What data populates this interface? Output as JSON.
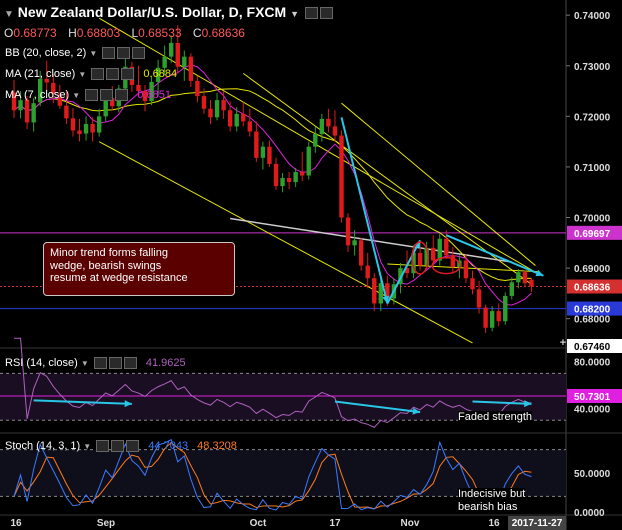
{
  "header": {
    "title": "New Zealand Dollar/U.S. Dollar, D, FXCM",
    "ohlc": [
      {
        "k": "O",
        "v": "0.68773"
      },
      {
        "k": "H",
        "v": "0.68803"
      },
      {
        "k": "L",
        "v": "0.68533"
      },
      {
        "k": "C",
        "v": "0.68636"
      }
    ]
  },
  "indicators": {
    "bb": {
      "label": "BB (20, close, 2)"
    },
    "ma21": {
      "label": "MA (21, close)",
      "value": "0.6884"
    },
    "ma7": {
      "label": "MA (7, close)",
      "value": "0.6851"
    },
    "rsi": {
      "label": "RSI (14, close)",
      "value": "41.9625"
    },
    "stoch": {
      "label": "Stoch (14, 3, 1)",
      "k": "44.7043",
      "d": "48.3208"
    }
  },
  "annotations": {
    "callout": [
      "Minor trend forms falling",
      "wedge, bearish swings",
      "resume at wedge resistance"
    ],
    "rsi_note": "Faded strength",
    "stoch_note": [
      "Indecisive but",
      "bearish bias"
    ]
  },
  "colors": {
    "background": "#000000",
    "up": "#2ea02e",
    "down": "#e01b1b",
    "bb": "#d8d800",
    "ma21": "#e6e600",
    "ma7": "#e020e0",
    "wedge_lines": "#e6e600",
    "arrows": "#29c6e6",
    "level_magenta": "#cc33cc",
    "level_blue": "#2a3ad8",
    "price_red": "#d43030",
    "callout_bg": "#5a0000",
    "stoch_k": "#3b7bff",
    "stoch_d": "#ff7a1a",
    "rsi_line": "#b060c0"
  },
  "chart_data": {
    "type": "candlestick",
    "symbol": "NZDUSD",
    "timeframe": "D",
    "y_axis_ticks": [
      "0.74000",
      "0.73000",
      "0.72000",
      "0.71000",
      "0.70000",
      "0.69000",
      "0.68000"
    ],
    "y_range": [
      0.6746,
      0.743
    ],
    "x_axis_labels": [
      "16",
      "Sep",
      "Oct",
      "17",
      "Nov",
      "16",
      "2017-11-27"
    ],
    "price_labels": [
      {
        "value": 0.69697,
        "text": "0.69697",
        "color": "#cc33cc"
      },
      {
        "value": 0.68636,
        "text": "0.68636",
        "color": "#d43030"
      },
      {
        "value": 0.682,
        "text": "0.68200",
        "color": "#2a3ad8"
      },
      {
        "value": 0.6746,
        "text": "0.67460",
        "color": "#ffffff"
      }
    ],
    "candles": [
      {
        "o": 0.7247,
        "h": 0.7272,
        "l": 0.7197,
        "c": 0.7212
      },
      {
        "o": 0.7212,
        "h": 0.725,
        "l": 0.7196,
        "c": 0.7232
      },
      {
        "o": 0.7233,
        "h": 0.724,
        "l": 0.7175,
        "c": 0.7188
      },
      {
        "o": 0.7188,
        "h": 0.7236,
        "l": 0.717,
        "c": 0.7226
      },
      {
        "o": 0.7228,
        "h": 0.729,
        "l": 0.722,
        "c": 0.7274
      },
      {
        "o": 0.7274,
        "h": 0.731,
        "l": 0.725,
        "c": 0.7267
      },
      {
        "o": 0.7266,
        "h": 0.7284,
        "l": 0.7226,
        "c": 0.7244
      },
      {
        "o": 0.7243,
        "h": 0.7262,
        "l": 0.7215,
        "c": 0.7221
      },
      {
        "o": 0.7221,
        "h": 0.7248,
        "l": 0.7185,
        "c": 0.7196
      },
      {
        "o": 0.7196,
        "h": 0.7216,
        "l": 0.716,
        "c": 0.7172
      },
      {
        "o": 0.7172,
        "h": 0.7195,
        "l": 0.715,
        "c": 0.7165
      },
      {
        "o": 0.7166,
        "h": 0.72,
        "l": 0.7152,
        "c": 0.7185
      },
      {
        "o": 0.7185,
        "h": 0.7198,
        "l": 0.715,
        "c": 0.7168
      },
      {
        "o": 0.7168,
        "h": 0.7215,
        "l": 0.716,
        "c": 0.72
      },
      {
        "o": 0.72,
        "h": 0.7246,
        "l": 0.719,
        "c": 0.7236
      },
      {
        "o": 0.7236,
        "h": 0.726,
        "l": 0.7212,
        "c": 0.722
      },
      {
        "o": 0.722,
        "h": 0.7262,
        "l": 0.7208,
        "c": 0.7255
      },
      {
        "o": 0.7255,
        "h": 0.732,
        "l": 0.7242,
        "c": 0.7298
      },
      {
        "o": 0.7298,
        "h": 0.7308,
        "l": 0.7248,
        "c": 0.7262
      },
      {
        "o": 0.7262,
        "h": 0.73,
        "l": 0.724,
        "c": 0.725
      },
      {
        "o": 0.725,
        "h": 0.7262,
        "l": 0.721,
        "c": 0.723
      },
      {
        "o": 0.723,
        "h": 0.728,
        "l": 0.7222,
        "c": 0.7268
      },
      {
        "o": 0.7268,
        "h": 0.7312,
        "l": 0.724,
        "c": 0.7296
      },
      {
        "o": 0.7296,
        "h": 0.734,
        "l": 0.7282,
        "c": 0.7318
      },
      {
        "o": 0.7318,
        "h": 0.736,
        "l": 0.7305,
        "c": 0.7345
      },
      {
        "o": 0.7345,
        "h": 0.738,
        "l": 0.7285,
        "c": 0.7298
      },
      {
        "o": 0.7298,
        "h": 0.733,
        "l": 0.727,
        "c": 0.7318
      },
      {
        "o": 0.7318,
        "h": 0.7325,
        "l": 0.7258,
        "c": 0.727
      },
      {
        "o": 0.727,
        "h": 0.728,
        "l": 0.7228,
        "c": 0.724
      },
      {
        "o": 0.724,
        "h": 0.7255,
        "l": 0.7205,
        "c": 0.7215
      },
      {
        "o": 0.7215,
        "h": 0.7232,
        "l": 0.7185,
        "c": 0.7198
      },
      {
        "o": 0.7198,
        "h": 0.7246,
        "l": 0.7192,
        "c": 0.7232
      },
      {
        "o": 0.7232,
        "h": 0.725,
        "l": 0.7195,
        "c": 0.7212
      },
      {
        "o": 0.7212,
        "h": 0.723,
        "l": 0.717,
        "c": 0.718
      },
      {
        "o": 0.718,
        "h": 0.7218,
        "l": 0.717,
        "c": 0.7205
      },
      {
        "o": 0.7205,
        "h": 0.7228,
        "l": 0.718,
        "c": 0.719
      },
      {
        "o": 0.719,
        "h": 0.7215,
        "l": 0.716,
        "c": 0.717
      },
      {
        "o": 0.717,
        "h": 0.719,
        "l": 0.711,
        "c": 0.7118
      },
      {
        "o": 0.7118,
        "h": 0.715,
        "l": 0.7095,
        "c": 0.714
      },
      {
        "o": 0.714,
        "h": 0.7152,
        "l": 0.71,
        "c": 0.7106
      },
      {
        "o": 0.7106,
        "h": 0.7118,
        "l": 0.7055,
        "c": 0.7062
      },
      {
        "o": 0.7062,
        "h": 0.7088,
        "l": 0.705,
        "c": 0.7078
      },
      {
        "o": 0.7078,
        "h": 0.709,
        "l": 0.7056,
        "c": 0.707
      },
      {
        "o": 0.707,
        "h": 0.7098,
        "l": 0.706,
        "c": 0.709
      },
      {
        "o": 0.709,
        "h": 0.713,
        "l": 0.7072,
        "c": 0.7083
      },
      {
        "o": 0.7083,
        "h": 0.715,
        "l": 0.7075,
        "c": 0.714
      },
      {
        "o": 0.714,
        "h": 0.718,
        "l": 0.7128,
        "c": 0.7165
      },
      {
        "o": 0.7165,
        "h": 0.7205,
        "l": 0.715,
        "c": 0.7195
      },
      {
        "o": 0.7195,
        "h": 0.7215,
        "l": 0.7168,
        "c": 0.718
      },
      {
        "o": 0.718,
        "h": 0.7212,
        "l": 0.715,
        "c": 0.7162
      },
      {
        "o": 0.7162,
        "h": 0.7172,
        "l": 0.699,
        "c": 0.7
      },
      {
        "o": 0.7,
        "h": 0.7008,
        "l": 0.6932,
        "c": 0.6945
      },
      {
        "o": 0.6945,
        "h": 0.6975,
        "l": 0.6925,
        "c": 0.6955
      },
      {
        "o": 0.6955,
        "h": 0.696,
        "l": 0.6895,
        "c": 0.6905
      },
      {
        "o": 0.6905,
        "h": 0.693,
        "l": 0.686,
        "c": 0.688
      },
      {
        "o": 0.688,
        "h": 0.689,
        "l": 0.6815,
        "c": 0.683
      },
      {
        "o": 0.683,
        "h": 0.6885,
        "l": 0.6815,
        "c": 0.687
      },
      {
        "o": 0.687,
        "h": 0.6885,
        "l": 0.6825,
        "c": 0.684
      },
      {
        "o": 0.684,
        "h": 0.688,
        "l": 0.6828,
        "c": 0.6868
      },
      {
        "o": 0.6868,
        "h": 0.691,
        "l": 0.685,
        "c": 0.69
      },
      {
        "o": 0.69,
        "h": 0.6935,
        "l": 0.688,
        "c": 0.689
      },
      {
        "o": 0.689,
        "h": 0.6945,
        "l": 0.688,
        "c": 0.693
      },
      {
        "o": 0.693,
        "h": 0.695,
        "l": 0.6895,
        "c": 0.6905
      },
      {
        "o": 0.6905,
        "h": 0.6952,
        "l": 0.6898,
        "c": 0.694
      },
      {
        "o": 0.694,
        "h": 0.6965,
        "l": 0.6905,
        "c": 0.6915
      },
      {
        "o": 0.6915,
        "h": 0.6968,
        "l": 0.6905,
        "c": 0.6958
      },
      {
        "o": 0.6958,
        "h": 0.6975,
        "l": 0.6918,
        "c": 0.6925
      },
      {
        "o": 0.6925,
        "h": 0.6942,
        "l": 0.689,
        "c": 0.6902
      },
      {
        "o": 0.6902,
        "h": 0.6925,
        "l": 0.688,
        "c": 0.6915
      },
      {
        "o": 0.6915,
        "h": 0.6928,
        "l": 0.687,
        "c": 0.688
      },
      {
        "o": 0.688,
        "h": 0.6895,
        "l": 0.6848,
        "c": 0.6858
      },
      {
        "o": 0.6858,
        "h": 0.6875,
        "l": 0.681,
        "c": 0.6822
      },
      {
        "o": 0.6822,
        "h": 0.6828,
        "l": 0.6772,
        "c": 0.6782
      },
      {
        "o": 0.6782,
        "h": 0.6825,
        "l": 0.6775,
        "c": 0.6815
      },
      {
        "o": 0.6815,
        "h": 0.683,
        "l": 0.6785,
        "c": 0.6795
      },
      {
        "o": 0.6795,
        "h": 0.6852,
        "l": 0.6788,
        "c": 0.6845
      },
      {
        "o": 0.6845,
        "h": 0.6882,
        "l": 0.6838,
        "c": 0.6872
      },
      {
        "o": 0.6872,
        "h": 0.6898,
        "l": 0.686,
        "c": 0.6892
      },
      {
        "o": 0.6892,
        "h": 0.6895,
        "l": 0.6862,
        "c": 0.687
      },
      {
        "o": 0.6877,
        "h": 0.688,
        "l": 0.6853,
        "c": 0.6864
      }
    ]
  }
}
